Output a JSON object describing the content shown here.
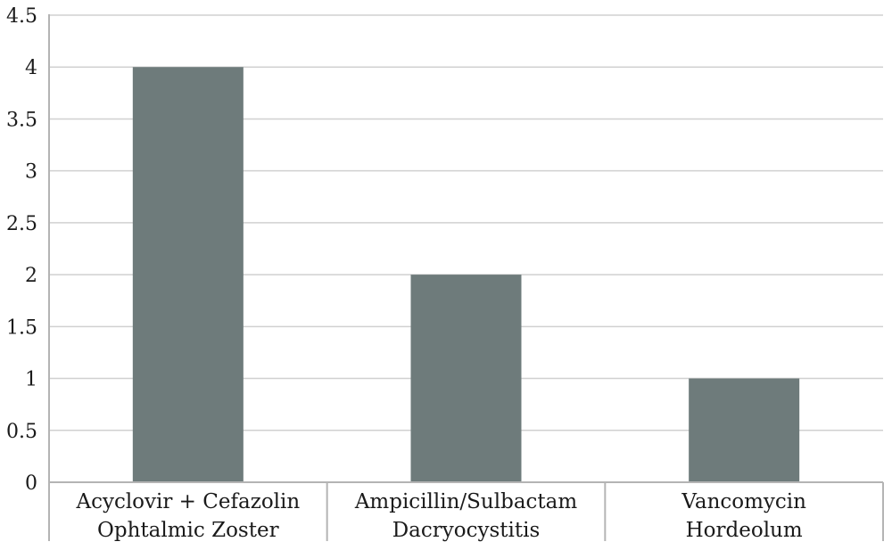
{
  "chart_data": {
    "type": "bar",
    "categories": [
      [
        "Acyclovir + Cefazolin",
        "Ophtalmic Zoster"
      ],
      [
        "Ampicillin/Sulbactam",
        "Dacryocystitis"
      ],
      [
        "Vancomycin",
        "Hordeolum"
      ]
    ],
    "values": [
      4,
      2,
      1
    ],
    "ylim": [
      0,
      4.5
    ],
    "yticks": [
      "0",
      "0.5",
      "1",
      "1.5",
      "2",
      "2.5",
      "3",
      "3.5",
      "4",
      "4.5"
    ],
    "grid": true,
    "bar_color": "#6e7b7b",
    "grid_color": "#d0d0d0",
    "axis_color": "#b4b4b4",
    "title": "",
    "xlabel": "",
    "ylabel": ""
  }
}
